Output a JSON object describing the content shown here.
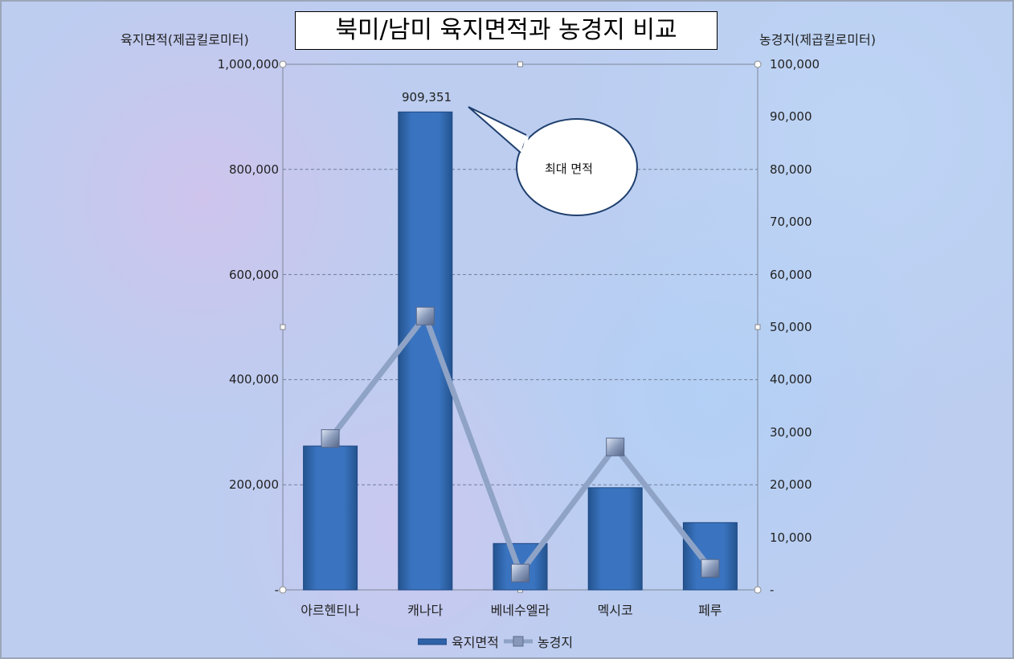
{
  "chart_data": {
    "type": "bar+line",
    "title": "북미/남미 육지면적과 농경지 비교",
    "ylabel_left": "육지면적(제곱킬로미터)",
    "ylabel_right": "농경지(제곱킬로미터)",
    "categories": [
      "아르헨티나",
      "캐나다",
      "베네수엘라",
      "멕시코",
      "페루"
    ],
    "series": [
      {
        "name": "육지면적",
        "type": "bar",
        "axis": "left",
        "values": [
          273669,
          909351,
          88205,
          194395,
          128000
        ],
        "color": "#2e62a8"
      },
      {
        "name": "농경지",
        "type": "line",
        "axis": "right",
        "values": [
          28800,
          52100,
          3200,
          27200,
          4100
        ],
        "color": "#8ea3c6"
      }
    ],
    "ylim_left": [
      0,
      1000000
    ],
    "ylim_right": [
      0,
      100000
    ],
    "yticks_left": [
      "-",
      "200,000",
      "400,000",
      "600,000",
      "800,000",
      "1,000,000"
    ],
    "yticks_right": [
      "-",
      "10,000",
      "20,000",
      "30,000",
      "40,000",
      "50,000",
      "60,000",
      "70,000",
      "80,000",
      "90,000",
      "100,000"
    ],
    "data_label": "909,351",
    "annotation": "최대 면적",
    "grid": "dashed horizontal",
    "legend": "bottom"
  }
}
